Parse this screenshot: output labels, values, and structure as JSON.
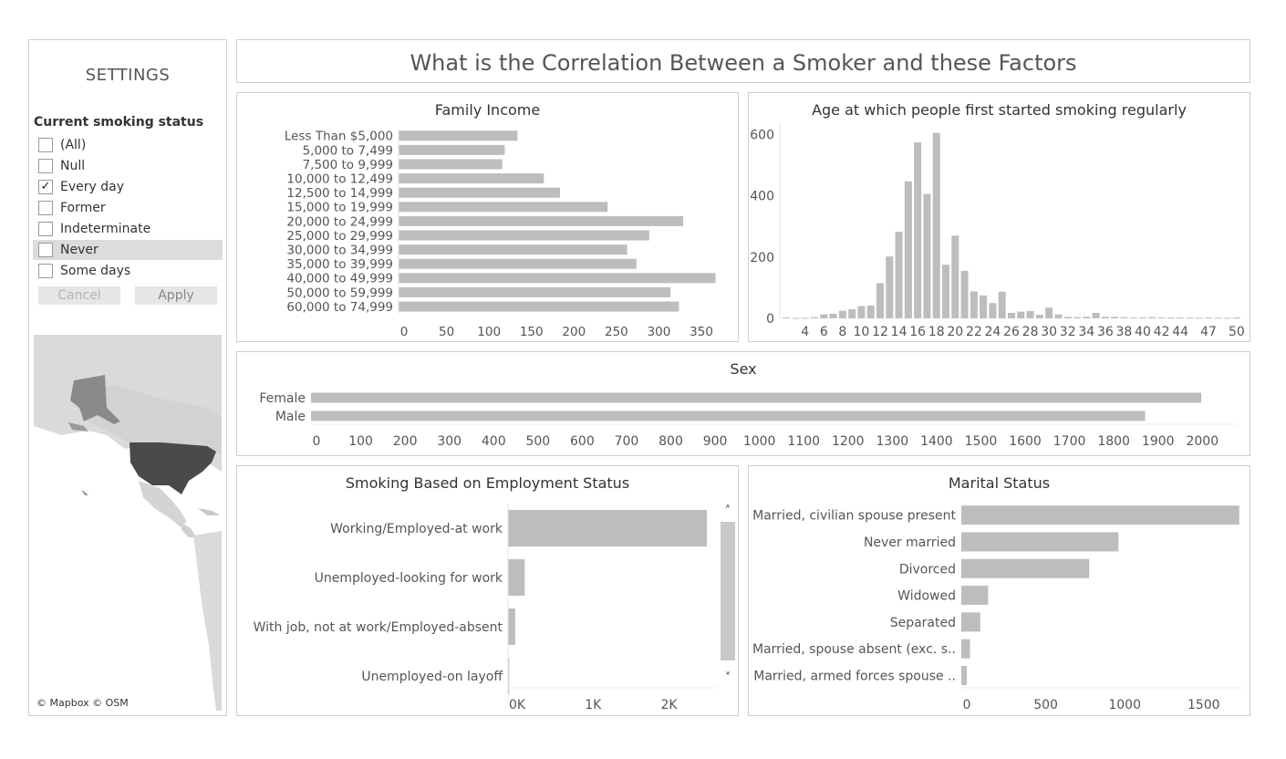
{
  "header": {
    "title": "What is the Correlation Between a Smoker and these Factors"
  },
  "settings": {
    "title": "SETTINGS",
    "filter_label": "Current smoking status",
    "options": [
      {
        "label": "(All)",
        "checked": false,
        "highlighted": false
      },
      {
        "label": "Null",
        "checked": false,
        "highlighted": false
      },
      {
        "label": "Every day",
        "checked": true,
        "highlighted": false
      },
      {
        "label": "Former",
        "checked": false,
        "highlighted": false
      },
      {
        "label": "Indeterminate",
        "checked": false,
        "highlighted": false
      },
      {
        "label": "Never",
        "checked": false,
        "highlighted": true
      },
      {
        "label": "Some days",
        "checked": false,
        "highlighted": false
      }
    ],
    "check_glyph": "✓",
    "cancel_label": "Cancel",
    "apply_label": "Apply"
  },
  "map": {
    "attribution": "© Mapbox © OSM"
  },
  "colors": {
    "bar": "#bdbdbd",
    "bar_dark": "#a6a6a6",
    "border": "#cfcfcf",
    "highlight": "#dcdcdc",
    "map_land": "#dadada",
    "map_water": "#ffffff",
    "map_focus": "#4a4a4a"
  },
  "scrollbar": {
    "up_glyph": "˄",
    "down_glyph": "˅"
  },
  "chart_data": [
    {
      "id": "income",
      "type": "bar",
      "orientation": "horizontal",
      "title": "Family Income",
      "categories": [
        "Less Than $5,000",
        "5,000 to 7,499",
        "7,500 to 9,999",
        "10,000 to 12,499",
        "12,500 to 14,999",
        "15,000 to 19,999",
        "20,000 to 24,999",
        "25,000 to 29,999",
        "30,000 to 34,999",
        "35,000 to 39,999",
        "40,000 to 49,999",
        "50,000 to 59,999",
        "60,000 to 74,999"
      ],
      "values": [
        140,
        125,
        122,
        171,
        190,
        246,
        335,
        295,
        269,
        280,
        373,
        320,
        330
      ],
      "xticks": [
        0,
        50,
        100,
        150,
        200,
        250,
        300,
        350
      ],
      "xlim": [
        0,
        380
      ]
    },
    {
      "id": "age",
      "type": "bar",
      "title": "Age at which people first started smoking regularly",
      "x": [
        2,
        3,
        4,
        5,
        6,
        7,
        8,
        9,
        10,
        11,
        12,
        13,
        14,
        15,
        16,
        17,
        18,
        19,
        20,
        21,
        22,
        23,
        24,
        25,
        26,
        27,
        28,
        29,
        30,
        31,
        32,
        33,
        34,
        35,
        36,
        37,
        38,
        39,
        40,
        41,
        42,
        43,
        44,
        45,
        46,
        47,
        48,
        49,
        50
      ],
      "values": [
        3,
        1,
        2,
        4,
        13,
        15,
        25,
        30,
        40,
        42,
        115,
        202,
        283,
        447,
        574,
        406,
        605,
        175,
        270,
        155,
        88,
        75,
        50,
        87,
        18,
        22,
        24,
        12,
        35,
        13,
        5,
        4,
        5,
        18,
        5,
        5,
        4,
        3,
        3,
        4,
        3,
        3,
        3,
        2,
        2,
        3,
        2,
        2,
        3
      ],
      "xticks": [
        4,
        6,
        8,
        10,
        12,
        14,
        16,
        18,
        20,
        22,
        24,
        26,
        28,
        30,
        32,
        34,
        36,
        38,
        40,
        42,
        44,
        47,
        50
      ],
      "yticks": [
        0,
        200,
        400,
        600
      ],
      "ylim": [
        0,
        640
      ]
    },
    {
      "id": "sex",
      "type": "bar",
      "orientation": "horizontal",
      "title": "Sex",
      "categories": [
        "Female",
        "Male"
      ],
      "values": [
        2010,
        1883
      ],
      "xticks": [
        0,
        100,
        200,
        300,
        400,
        500,
        600,
        700,
        800,
        900,
        1000,
        1100,
        1200,
        1300,
        1400,
        1500,
        1600,
        1700,
        1800,
        1900,
        2000
      ],
      "xlim": [
        0,
        2090
      ]
    },
    {
      "id": "employment",
      "type": "bar",
      "orientation": "horizontal",
      "title": "Smoking Based on Employment Status",
      "categories": [
        "Working/Employed-at work",
        "Unemployed-looking for work",
        "With job, not at work/Employed-absent",
        "Unemployed-on layoff"
      ],
      "values": [
        2620,
        220,
        95,
        15
      ],
      "xticks": [
        "0K",
        "1K",
        "2K"
      ],
      "xtick_values": [
        0,
        1000,
        2000
      ],
      "xlim": [
        0,
        2750
      ]
    },
    {
      "id": "marital",
      "type": "bar",
      "orientation": "horizontal",
      "title": "Marital Status",
      "categories": [
        "Married, civilian spouse present",
        "Never married",
        "Divorced",
        "Widowed",
        "Separated",
        "Married, spouse absent (exc. s..",
        "Married, armed forces spouse .."
      ],
      "values": [
        1760,
        995,
        810,
        170,
        120,
        55,
        35
      ],
      "xticks": [
        0,
        500,
        1000,
        1500
      ],
      "xlim": [
        0,
        1790
      ]
    }
  ]
}
